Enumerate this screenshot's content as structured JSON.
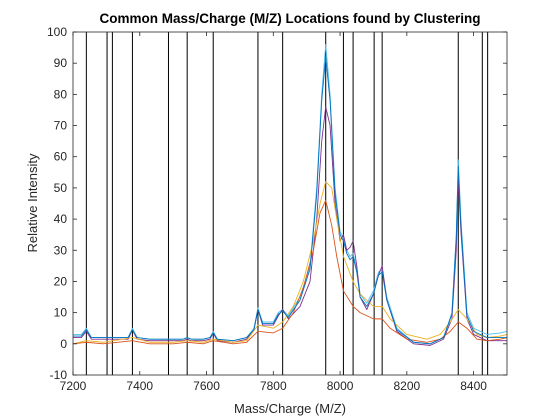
{
  "chart_data": {
    "type": "line",
    "title": "Common Mass/Charge (M/Z) Locations found by Clustering",
    "xlabel": "Mass/Charge (M/Z)",
    "ylabel": "Relative Intensity",
    "xlim": [
      7200,
      8500
    ],
    "ylim": [
      -10,
      100
    ],
    "xticks": [
      7200,
      7400,
      7600,
      7800,
      8000,
      8200,
      8400
    ],
    "yticks": [
      -10,
      0,
      10,
      20,
      30,
      40,
      50,
      60,
      70,
      80,
      90,
      100
    ],
    "grid": false,
    "legend": "none",
    "cluster_locations": [
      7240,
      7302,
      7318,
      7378,
      7486,
      7542,
      7620,
      7754,
      7828,
      7957,
      8010,
      8039,
      8102,
      8126,
      8354,
      8426,
      8442
    ],
    "series": [
      {
        "color": "#4dbeee",
        "x": [
          7200,
          7225,
          7240,
          7255,
          7290,
          7340,
          7365,
          7378,
          7392,
          7430,
          7500,
          7530,
          7542,
          7554,
          7590,
          7610,
          7620,
          7632,
          7680,
          7720,
          7742,
          7754,
          7768,
          7800,
          7815,
          7828,
          7845,
          7880,
          7910,
          7930,
          7945,
          7957,
          7970,
          7985,
          8000,
          8010,
          8020,
          8030,
          8039,
          8050,
          8060,
          8080,
          8100,
          8115,
          8126,
          8140,
          8170,
          8220,
          8270,
          8310,
          8335,
          8348,
          8354,
          8362,
          8380,
          8400,
          8440,
          8480,
          8500
        ],
        "values": [
          3,
          3,
          5,
          2,
          2,
          2,
          2,
          5,
          2,
          1.5,
          1.5,
          1.5,
          2,
          1.5,
          1.5,
          2,
          4,
          1.5,
          1,
          2,
          5,
          11.5,
          7,
          7,
          10,
          11,
          9,
          15,
          25,
          50,
          80,
          96,
          80,
          50,
          36,
          34,
          30,
          28,
          29,
          24,
          16,
          13,
          17,
          23,
          24,
          15,
          5,
          0.5,
          0,
          2,
          10,
          35,
          59,
          40,
          10,
          5,
          3,
          3.5,
          4
        ]
      },
      {
        "color": "#7e2f8e",
        "x": [
          7200,
          7225,
          7240,
          7255,
          7290,
          7340,
          7365,
          7378,
          7392,
          7430,
          7500,
          7530,
          7542,
          7554,
          7590,
          7610,
          7620,
          7632,
          7680,
          7720,
          7742,
          7754,
          7768,
          7800,
          7815,
          7828,
          7845,
          7880,
          7910,
          7930,
          7945,
          7957,
          7970,
          7985,
          8000,
          8010,
          8020,
          8030,
          8039,
          8050,
          8060,
          8080,
          8100,
          8115,
          8126,
          8140,
          8170,
          8220,
          8270,
          8310,
          8335,
          8348,
          8354,
          8362,
          8380,
          8400,
          8440,
          8480,
          8500
        ],
        "values": [
          2,
          2,
          4,
          1.5,
          1.5,
          1.5,
          1.5,
          4.5,
          1.5,
          1,
          1,
          1,
          1.5,
          1,
          1,
          1.5,
          3.5,
          1,
          0.5,
          1.5,
          4.5,
          11,
          6,
          6,
          9,
          11,
          8,
          12,
          20,
          40,
          65,
          76,
          70,
          45,
          33,
          35,
          30,
          31,
          33,
          25,
          15,
          11,
          16,
          22,
          25,
          14,
          4,
          0,
          -0.5,
          1.5,
          8,
          30,
          53,
          36,
          8,
          3,
          1,
          1,
          1
        ]
      },
      {
        "color": "#edb120",
        "x": [
          7200,
          7240,
          7290,
          7378,
          7430,
          7500,
          7542,
          7590,
          7620,
          7680,
          7720,
          7754,
          7800,
          7828,
          7860,
          7890,
          7920,
          7940,
          7957,
          7975,
          7990,
          8010,
          8039,
          8060,
          8080,
          8100,
          8126,
          8150,
          8200,
          8260,
          8300,
          8330,
          8354,
          8380,
          8410,
          8440,
          8480,
          8500
        ],
        "values": [
          0,
          1,
          0.5,
          2,
          0.5,
          0.5,
          1,
          0.5,
          1.5,
          0.5,
          1,
          6,
          5,
          7,
          12,
          20,
          33,
          45,
          52,
          50,
          40,
          28,
          20,
          16,
          14,
          12,
          12,
          8,
          3,
          1.5,
          3,
          7,
          11,
          8,
          3,
          2,
          2.5,
          3
        ]
      },
      {
        "color": "#d95319",
        "x": [
          7200,
          7240,
          7290,
          7378,
          7430,
          7500,
          7542,
          7590,
          7620,
          7680,
          7720,
          7754,
          7800,
          7828,
          7860,
          7890,
          7920,
          7940,
          7957,
          7975,
          7990,
          8010,
          8039,
          8060,
          8080,
          8100,
          8126,
          8150,
          8200,
          8260,
          8300,
          8330,
          8354,
          8380,
          8410,
          8440,
          8480,
          8500
        ],
        "values": [
          0,
          0.5,
          0,
          1,
          0,
          0,
          0.5,
          0,
          1,
          0,
          0.5,
          4,
          3.5,
          5,
          10,
          18,
          30,
          42,
          46,
          38,
          28,
          17,
          12,
          10,
          9,
          8,
          8,
          5,
          1.5,
          0.5,
          1.5,
          4,
          7,
          5,
          1.5,
          1,
          1.5,
          2
        ]
      },
      {
        "color": "#0072bd",
        "x": [
          7200,
          7225,
          7240,
          7255,
          7290,
          7340,
          7365,
          7378,
          7392,
          7430,
          7500,
          7530,
          7542,
          7554,
          7590,
          7610,
          7620,
          7632,
          7680,
          7720,
          7742,
          7754,
          7768,
          7800,
          7815,
          7828,
          7845,
          7880,
          7910,
          7930,
          7945,
          7957,
          7970,
          7985,
          8000,
          8010,
          8020,
          8030,
          8039,
          8050,
          8060,
          8080,
          8100,
          8115,
          8126,
          8140,
          8170,
          8220,
          8270,
          8310,
          8335,
          8348,
          8354,
          8362,
          8380,
          8400,
          8440,
          8480,
          8500
        ],
        "values": [
          2.5,
          2.5,
          4.5,
          2,
          2,
          2,
          2,
          4.5,
          2,
          1.5,
          1.5,
          1.5,
          2,
          1.5,
          1.5,
          2,
          3.5,
          1.5,
          1,
          2,
          4.5,
          11,
          6.5,
          6.5,
          9.5,
          10.5,
          8.5,
          14,
          24,
          48,
          78,
          92,
          78,
          48,
          35,
          33,
          29,
          27,
          28,
          23,
          15,
          12,
          16,
          22,
          23,
          14,
          4.5,
          0.5,
          0,
          2,
          9.5,
          34,
          57,
          38,
          9,
          4,
          2,
          2,
          2
        ]
      }
    ]
  }
}
